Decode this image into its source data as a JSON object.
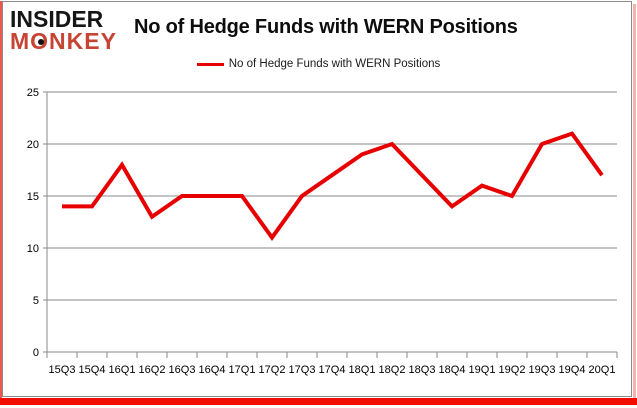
{
  "header": {
    "logo_line1": "INSIDER",
    "logo_line2": "MONKEY",
    "title": "No of Hedge Funds with WERN Positions"
  },
  "legend": {
    "label": "No of Hedge Funds with WERN Positions"
  },
  "colors": {
    "series_red": "#e60000",
    "logo_black": "#161616",
    "logo_red": "#c64434",
    "grid_gray": "#8a8a8a",
    "axis_text": "#000000",
    "frame_red": "#f10d00",
    "frame_pink": "#f6b3ae",
    "border_gray": "#8c8c8c"
  },
  "chart_data": {
    "type": "line",
    "title": "No of Hedge Funds with WERN Positions",
    "categories": [
      "15Q3",
      "15Q4",
      "16Q1",
      "16Q2",
      "16Q3",
      "16Q4",
      "17Q1",
      "17Q2",
      "17Q3",
      "17Q4",
      "18Q1",
      "18Q2",
      "18Q3",
      "18Q4",
      "19Q1",
      "19Q2",
      "19Q3",
      "19Q4",
      "20Q1"
    ],
    "series": [
      {
        "name": "No of Hedge Funds with WERN Positions",
        "values": [
          14,
          14,
          18,
          13,
          15,
          15,
          15,
          11,
          15,
          17,
          19,
          20,
          17,
          14,
          16,
          15,
          20,
          21,
          17
        ]
      }
    ],
    "ylim": [
      0,
      25
    ],
    "yticks": [
      0,
      5,
      10,
      15,
      20,
      25
    ],
    "grid": "horizontal",
    "legend_position": "top-center",
    "line_color": "#e60000",
    "line_width": 4
  }
}
